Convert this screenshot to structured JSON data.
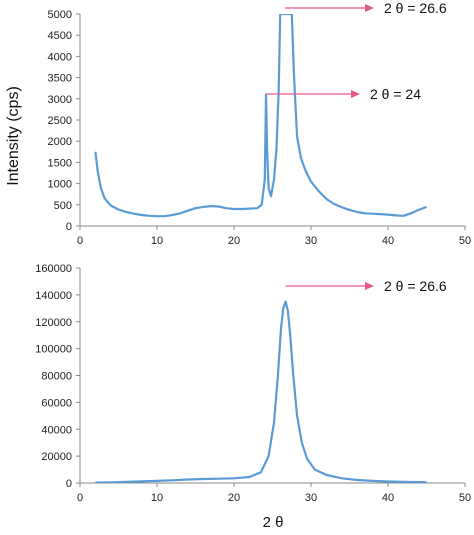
{
  "figure": {
    "ylabel": "Intensity (cps)",
    "xlabel": "2 θ"
  },
  "chart_data": [
    {
      "type": "line",
      "title": "",
      "xlim": [
        0,
        50
      ],
      "ylim": [
        0,
        5000
      ],
      "xticks": [
        0,
        10,
        20,
        30,
        40,
        50
      ],
      "yticks": [
        0,
        500,
        1000,
        1500,
        2000,
        2500,
        3000,
        3500,
        4000,
        4500,
        5000
      ],
      "color": "#5b9bd5",
      "series": [
        {
          "x": [
            2.0,
            2.3,
            2.7,
            3.2,
            4.0,
            5.0,
            6.0,
            7.0,
            8.0,
            9.0,
            10.0,
            11.0,
            12.0,
            13.0,
            14.0,
            15.0,
            16.0,
            17.0,
            18.0,
            19.0,
            20.0,
            21.0,
            22.0,
            23.0,
            23.6,
            24.0,
            24.15,
            24.3,
            24.5,
            24.8,
            25.2,
            25.5,
            25.8,
            26.0,
            26.3,
            26.6,
            26.9,
            27.2,
            27.5,
            27.8,
            28.2,
            28.7,
            29.3,
            30.0,
            31.0,
            32.0,
            33.0,
            34.0,
            35.0,
            36.0,
            37.0,
            38.0,
            39.0,
            40.0,
            41.0,
            42.0,
            43.0,
            44.0,
            45.0
          ],
          "y": [
            1750,
            1300,
            900,
            650,
            480,
            390,
            330,
            290,
            260,
            240,
            230,
            230,
            260,
            300,
            360,
            420,
            450,
            470,
            460,
            420,
            400,
            400,
            410,
            420,
            500,
            1100,
            3100,
            1800,
            900,
            700,
            1100,
            1800,
            3200,
            5000,
            5000,
            5000,
            5000,
            5000,
            5000,
            3500,
            2100,
            1600,
            1300,
            1050,
            820,
            640,
            520,
            440,
            380,
            330,
            300,
            290,
            280,
            270,
            250,
            240,
            300,
            380,
            450
          ]
        }
      ],
      "annotations": [
        {
          "text": "2 θ = 26.6",
          "x": 26.6,
          "y": 5000
        },
        {
          "text": "2 θ = 24",
          "x": 24.2,
          "y": 3100
        }
      ]
    },
    {
      "type": "line",
      "title": "",
      "xlim": [
        0,
        50
      ],
      "ylim": [
        0,
        160000
      ],
      "xticks": [
        0,
        10,
        20,
        30,
        40,
        50
      ],
      "yticks": [
        0,
        20000,
        40000,
        60000,
        80000,
        100000,
        120000,
        140000,
        160000
      ],
      "color": "#5b9bd5",
      "series": [
        {
          "x": [
            2.0,
            4.0,
            6.0,
            8.0,
            10.0,
            12.0,
            14.0,
            16.0,
            18.0,
            20.0,
            22.0,
            23.5,
            24.5,
            25.2,
            25.7,
            26.1,
            26.4,
            26.7,
            27.0,
            27.3,
            27.7,
            28.2,
            28.8,
            29.5,
            30.5,
            32.0,
            34.0,
            36.0,
            38.0,
            40.0,
            42.0,
            45.0
          ],
          "y": [
            300,
            500,
            800,
            1200,
            1600,
            2000,
            2600,
            3000,
            3200,
            3500,
            4500,
            8000,
            20000,
            45000,
            80000,
            115000,
            130000,
            135000,
            128000,
            110000,
            80000,
            50000,
            30000,
            18000,
            10000,
            6000,
            3500,
            2200,
            1600,
            1100,
            800,
            600
          ]
        }
      ],
      "annotations": [
        {
          "text": "2 θ = 26.6",
          "x": 26.7,
          "y": 135000
        }
      ]
    }
  ]
}
